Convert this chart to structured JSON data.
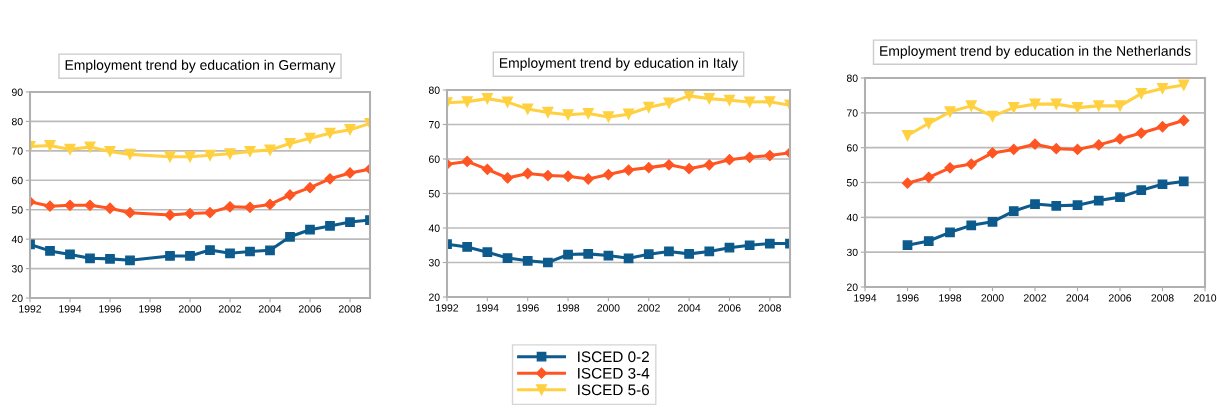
{
  "chart_data": [
    {
      "type": "line",
      "title": "Employment trend by education in Germany",
      "x": [
        1992,
        1993,
        1994,
        1995,
        1996,
        1997,
        1999,
        2000,
        2001,
        2002,
        2003,
        2004,
        2005,
        2006,
        2007,
        2008,
        2009
      ],
      "xlim": [
        1992,
        2009
      ],
      "xticks": [
        1992,
        1994,
        1996,
        1998,
        2000,
        2002,
        2004,
        2006,
        2008
      ],
      "ylim": [
        20,
        90
      ],
      "yticks": [
        20,
        30,
        40,
        50,
        60,
        70,
        80,
        90
      ],
      "grid": "y",
      "legend": "bottom",
      "series": [
        {
          "name": "ISCED 0-2",
          "color": "#0d5a8c",
          "marker": "square",
          "values": [
            38.2,
            36,
            34.8,
            33.5,
            33.3,
            32.8,
            34.3,
            34.3,
            36.3,
            35.2,
            35.8,
            36.2,
            40.8,
            43.2,
            44.5,
            45.8,
            46.5
          ]
        },
        {
          "name": "ISCED 3-4",
          "color": "#ff5522",
          "marker": "diamond",
          "values": [
            52.7,
            51.2,
            51.5,
            51.5,
            50.5,
            49,
            48.2,
            48.7,
            49,
            51,
            50.8,
            51.8,
            55,
            57.5,
            60.5,
            62.5,
            63.8
          ]
        },
        {
          "name": "ISCED 5-6",
          "color": "#ffd040",
          "marker": "triangle",
          "values": [
            71.5,
            71.8,
            70.5,
            71.3,
            69.8,
            68.8,
            68,
            68,
            68.5,
            69,
            69.8,
            70.3,
            72.5,
            74.3,
            76,
            77.2,
            79.3
          ]
        }
      ]
    },
    {
      "type": "line",
      "title": "Employment trend by education in Italy",
      "x": [
        1992,
        1993,
        1994,
        1995,
        1996,
        1997,
        1998,
        1999,
        2000,
        2001,
        2002,
        2003,
        2004,
        2005,
        2006,
        2007,
        2008,
        2009
      ],
      "xlim": [
        1992,
        2009
      ],
      "xticks": [
        1992,
        1994,
        1996,
        1998,
        2000,
        2002,
        2004,
        2006,
        2008
      ],
      "ylim": [
        20,
        80
      ],
      "yticks": [
        20,
        30,
        40,
        50,
        60,
        70,
        80
      ],
      "grid": "y",
      "series": [
        {
          "color": "#0d5a8c",
          "marker": "square",
          "values": [
            35.3,
            34.5,
            33,
            31.3,
            30.5,
            30,
            32.3,
            32.5,
            32,
            31.2,
            32.4,
            33.2,
            32.5,
            33.2,
            34.3,
            35,
            35.5,
            35.5
          ]
        },
        {
          "color": "#ff5522",
          "marker": "diamond",
          "values": [
            58.5,
            59.3,
            57,
            54.5,
            55.8,
            55.2,
            55,
            54.2,
            55.5,
            56.8,
            57.5,
            58.3,
            57.2,
            58.3,
            59.8,
            60.5,
            61,
            61.8
          ]
        },
        {
          "color": "#ffd040",
          "marker": "triangle",
          "values": [
            76.3,
            76.6,
            77.5,
            76.5,
            74.5,
            73.5,
            72.8,
            73.2,
            72.2,
            73,
            75,
            76.2,
            78.3,
            77.5,
            77,
            76.5,
            76.6,
            75.6
          ]
        }
      ]
    },
    {
      "type": "line",
      "title": "Employment trend by education in the Netherlands",
      "x": [
        1996,
        1997,
        1998,
        1999,
        2000,
        2001,
        2002,
        2003,
        2004,
        2005,
        2006,
        2007,
        2008,
        2009
      ],
      "xlim": [
        1994,
        2010
      ],
      "xticks": [
        1994,
        1996,
        1998,
        2000,
        2002,
        2004,
        2006,
        2008,
        2010
      ],
      "ylim": [
        20,
        80
      ],
      "yticks": [
        20,
        30,
        40,
        50,
        60,
        70,
        80
      ],
      "grid": "y",
      "series": [
        {
          "color": "#0d5a8c",
          "marker": "square",
          "values": [
            32,
            33.2,
            35.7,
            37.7,
            38.7,
            41.8,
            43.8,
            43.3,
            43.5,
            44.8,
            45.8,
            47.8,
            49.5,
            50.3
          ]
        },
        {
          "color": "#ff5522",
          "marker": "diamond",
          "values": [
            49.8,
            51.5,
            54.2,
            55.3,
            58.5,
            59.5,
            61,
            59.7,
            59.5,
            60.8,
            62.5,
            64.2,
            66,
            67.8
          ]
        },
        {
          "color": "#ffd040",
          "marker": "triangle",
          "values": [
            63.5,
            67,
            70.3,
            72,
            69,
            71.5,
            72.5,
            72.5,
            71.5,
            72,
            72,
            75.5,
            77,
            78
          ]
        }
      ]
    }
  ]
}
